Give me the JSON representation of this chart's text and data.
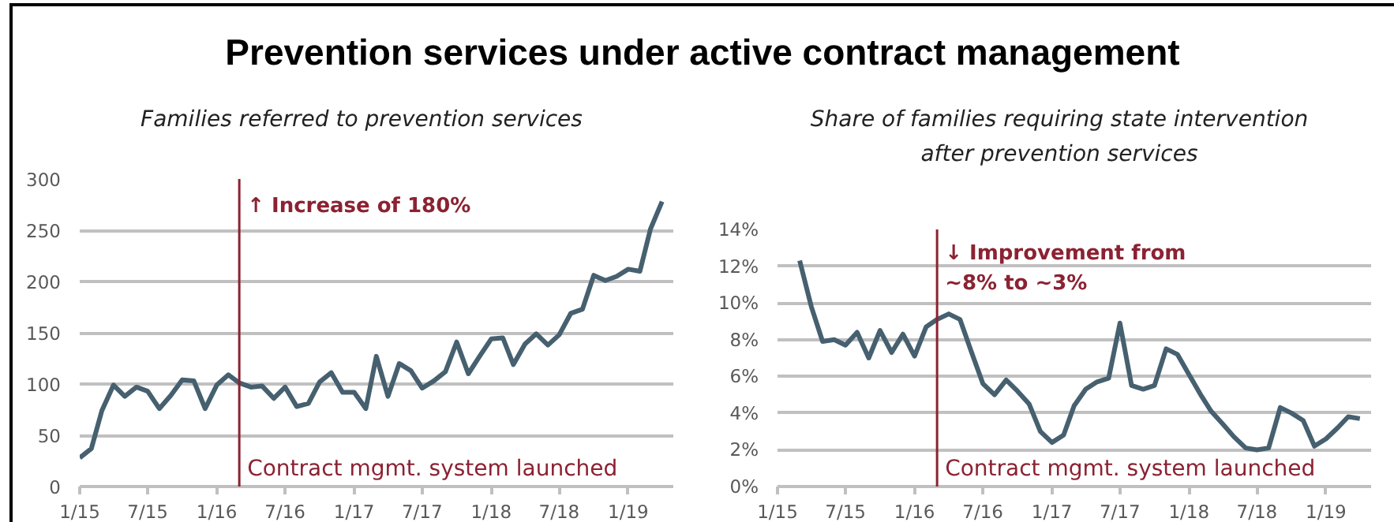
{
  "chart_data": [
    {
      "type": "line",
      "title": "Prevention services under active contract management",
      "subtitle": "Families referred to prevention services",
      "x": [
        "2015-01",
        "2015-02",
        "2015-03",
        "2015-04",
        "2015-05",
        "2015-06",
        "2015-07",
        "2015-08",
        "2015-09",
        "2015-10",
        "2015-11",
        "2015-12",
        "2016-01",
        "2016-02",
        "2016-03",
        "2016-04",
        "2016-05",
        "2016-06",
        "2016-07",
        "2016-08",
        "2016-09",
        "2016-10",
        "2016-11",
        "2016-12",
        "2017-01",
        "2017-02",
        "2017-03",
        "2017-04",
        "2017-05",
        "2017-06",
        "2017-07",
        "2017-08",
        "2017-09",
        "2017-10",
        "2017-11",
        "2017-12",
        "2018-01",
        "2018-02",
        "2018-03",
        "2018-04",
        "2018-05",
        "2018-06",
        "2018-07",
        "2018-08",
        "2018-09",
        "2018-10",
        "2018-11",
        "2018-12",
        "2019-01",
        "2019-02",
        "2019-03",
        "2019-04"
      ],
      "values": [
        28,
        37,
        74,
        99,
        88,
        97,
        93,
        76,
        89,
        104,
        103,
        76,
        99,
        109,
        101,
        97,
        98,
        86,
        97,
        78,
        81,
        102,
        111,
        92,
        92,
        76,
        127,
        88,
        120,
        113,
        96,
        103,
        112,
        141,
        110,
        127,
        144,
        145,
        119,
        139,
        149,
        138,
        148,
        169,
        173,
        206,
        201,
        205,
        212,
        210,
        251,
        278
      ],
      "color": "#46606f",
      "xlim": [
        "2015-01",
        "2019-05"
      ],
      "xticks": [
        {
          "value": "2015-01",
          "label": "1/15"
        },
        {
          "value": "2015-07",
          "label": "7/15"
        },
        {
          "value": "2016-01",
          "label": "1/16"
        },
        {
          "value": "2016-07",
          "label": "7/16"
        },
        {
          "value": "2017-01",
          "label": "1/17"
        },
        {
          "value": "2017-07",
          "label": "7/17"
        },
        {
          "value": "2018-01",
          "label": "1/18"
        },
        {
          "value": "2018-07",
          "label": "7/18"
        },
        {
          "value": "2019-01",
          "label": "1/19"
        }
      ],
      "ylim": [
        0,
        300
      ],
      "yticks": [
        0,
        50,
        100,
        150,
        200,
        250,
        300
      ],
      "grid": "y",
      "ref_lines": [
        {
          "axis": "x",
          "value": "2016-03",
          "label": "Contract mgmt. system launched",
          "color": "#8b2232"
        }
      ],
      "annotations": [
        {
          "text": "↑ Increase of 180%",
          "x": "2016-03",
          "y": 285
        }
      ]
    },
    {
      "type": "line",
      "subtitle": "Share of families requiring state intervention\nafter prevention services",
      "x": [
        "2015-03",
        "2015-04",
        "2015-05",
        "2015-06",
        "2015-07",
        "2015-08",
        "2015-09",
        "2015-10",
        "2015-11",
        "2015-12",
        "2016-01",
        "2016-02",
        "2016-03",
        "2016-04",
        "2016-05",
        "2016-06",
        "2016-07",
        "2016-08",
        "2016-09",
        "2016-10",
        "2016-11",
        "2016-12",
        "2017-01",
        "2017-02",
        "2017-03",
        "2017-04",
        "2017-05",
        "2017-06",
        "2017-07",
        "2017-08",
        "2017-09",
        "2017-10",
        "2017-11",
        "2017-12",
        "2018-01",
        "2018-02",
        "2018-03",
        "2018-04",
        "2018-05",
        "2018-06",
        "2018-07",
        "2018-08",
        "2018-09",
        "2018-10",
        "2018-11",
        "2018-12",
        "2019-01",
        "2019-02",
        "2019-03",
        "2019-04"
      ],
      "values": [
        12.3,
        9.8,
        7.9,
        8.0,
        7.7,
        8.4,
        7.0,
        8.5,
        7.3,
        8.3,
        7.1,
        8.7,
        9.1,
        9.4,
        9.1,
        7.3,
        5.6,
        5.0,
        5.8,
        5.2,
        4.5,
        3.0,
        2.4,
        2.8,
        4.4,
        5.3,
        5.7,
        5.9,
        8.9,
        5.5,
        5.3,
        5.5,
        7.5,
        7.2,
        6.1,
        5.0,
        4.1,
        3.4,
        2.7,
        2.1,
        2.0,
        2.1,
        4.3,
        4.0,
        3.6,
        2.2,
        2.6,
        3.2,
        3.8,
        3.7
      ],
      "color": "#46606f",
      "xlim": [
        "2015-01",
        "2019-05"
      ],
      "xticks": [
        {
          "value": "2015-01",
          "label": "1/15"
        },
        {
          "value": "2015-07",
          "label": "7/15"
        },
        {
          "value": "2016-01",
          "label": "1/16"
        },
        {
          "value": "2016-07",
          "label": "7/16"
        },
        {
          "value": "2017-01",
          "label": "1/17"
        },
        {
          "value": "2017-07",
          "label": "7/17"
        },
        {
          "value": "2018-01",
          "label": "1/18"
        },
        {
          "value": "2018-07",
          "label": "7/18"
        },
        {
          "value": "2019-01",
          "label": "1/19"
        }
      ],
      "ylim": [
        0,
        14
      ],
      "yticks": [
        {
          "value": 0,
          "label": "0%"
        },
        {
          "value": 2,
          "label": "2%"
        },
        {
          "value": 4,
          "label": "4%"
        },
        {
          "value": 6,
          "label": "6%"
        },
        {
          "value": 8,
          "label": "8%"
        },
        {
          "value": 10,
          "label": "10%"
        },
        {
          "value": 12,
          "label": "12%"
        },
        {
          "value": 14,
          "label": "14%"
        }
      ],
      "grid": "y",
      "ref_lines": [
        {
          "axis": "x",
          "value": "2016-03",
          "label": "Contract mgmt. system launched",
          "color": "#8b2232"
        }
      ],
      "annotations": [
        {
          "text": "↓ Improvement from\n~8% to ~3%",
          "x": "2016-03",
          "y": 13.3
        }
      ]
    }
  ]
}
